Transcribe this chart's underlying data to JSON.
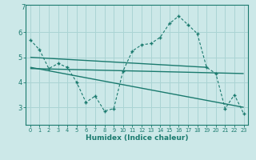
{
  "xlabel": "Humidex (Indice chaleur)",
  "background_color": "#cce8e8",
  "grid_color": "#aad4d4",
  "line_color": "#1a7a6e",
  "xlim": [
    -0.5,
    23.5
  ],
  "ylim": [
    2.3,
    7.1
  ],
  "yticks": [
    3,
    4,
    5,
    6
  ],
  "ytick_top": 7,
  "xticks": [
    0,
    1,
    2,
    3,
    4,
    5,
    6,
    7,
    8,
    9,
    10,
    11,
    12,
    13,
    14,
    15,
    16,
    17,
    18,
    19,
    20,
    21,
    22,
    23
  ],
  "main_series_x": [
    0,
    1,
    2,
    3,
    4,
    5,
    6,
    7,
    8,
    9,
    10,
    11,
    12,
    13,
    14,
    15,
    16,
    17,
    18,
    19,
    20,
    21,
    22,
    23
  ],
  "main_series_y": [
    5.7,
    5.3,
    4.55,
    4.75,
    4.6,
    4.0,
    3.2,
    3.45,
    2.85,
    2.95,
    4.45,
    5.25,
    5.5,
    5.55,
    5.8,
    6.35,
    6.65,
    6.3,
    5.95,
    4.6,
    4.35,
    2.95,
    3.5,
    2.75
  ],
  "trend1_x": [
    0,
    19
  ],
  "trend1_y": [
    5.0,
    4.6
  ],
  "trend2_x": [
    0,
    23
  ],
  "trend2_y": [
    4.55,
    4.35
  ],
  "trend3_x": [
    0,
    23
  ],
  "trend3_y": [
    4.6,
    3.0
  ]
}
